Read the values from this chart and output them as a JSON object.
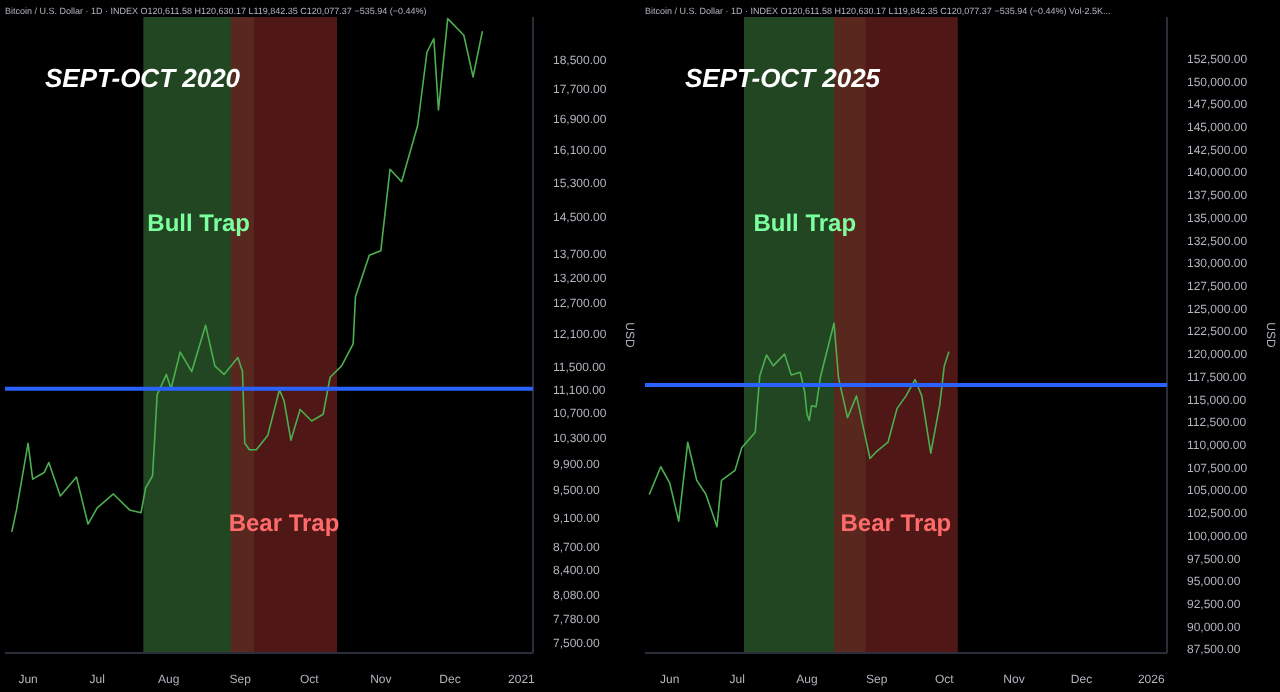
{
  "chart_data": [
    {
      "type": "line",
      "title": "SEPT-OCT 2020",
      "subtitle": "Bitcoin / U.S. Dollar · 1D · INDEX  O120,611.58 H120,630.17 L119,842.35 C120,077.37 −535.94 (−0.44%)",
      "ylabel": "USD",
      "log": true,
      "x": [
        "2020-05-25",
        "2020-05-27",
        "2020-06-01",
        "2020-06-03",
        "2020-06-08",
        "2020-06-10",
        "2020-06-15",
        "2020-06-22",
        "2020-06-27",
        "2020-07-01",
        "2020-07-08",
        "2020-07-15",
        "2020-07-20",
        "2020-07-22",
        "2020-07-25",
        "2020-07-27",
        "2020-07-31",
        "2020-08-02",
        "2020-08-06",
        "2020-08-11",
        "2020-08-17",
        "2020-08-21",
        "2020-08-25",
        "2020-08-31",
        "2020-09-02",
        "2020-09-03",
        "2020-09-05",
        "2020-09-08",
        "2020-09-13",
        "2020-09-18",
        "2020-09-20",
        "2020-09-23",
        "2020-09-27",
        "2020-10-02",
        "2020-10-07",
        "2020-10-10",
        "2020-10-15",
        "2020-10-20",
        "2020-10-21",
        "2020-10-27",
        "2020-11-01",
        "2020-11-05",
        "2020-11-10",
        "2020-11-17",
        "2020-11-21",
        "2020-11-24",
        "2020-11-26",
        "2020-11-30",
        "2020-12-07",
        "2020-12-11",
        "2020-12-15"
      ],
      "series": [
        {
          "color": "#4caf50",
          "values": [
            8900,
            9200,
            10200,
            9650,
            9750,
            9900,
            9400,
            9680,
            9000,
            9230,
            9430,
            9200,
            9160,
            9520,
            9700,
            11000,
            11350,
            11100,
            11750,
            11400,
            12250,
            11500,
            11350,
            11650,
            11400,
            10200,
            10100,
            10100,
            10330,
            11080,
            10900,
            10250,
            10750,
            10560,
            10670,
            11300,
            11500,
            11900,
            12800,
            13650,
            13750,
            15600,
            15300,
            16700,
            18700,
            19100,
            17100,
            19700,
            19200,
            18000,
            19300
          ]
        }
      ],
      "xlim": [
        "2020-05-22",
        "2021-01-06"
      ],
      "xticks": [
        {
          "value": "2020-06-01",
          "label": "Jun"
        },
        {
          "value": "2020-07-01",
          "label": "Jul"
        },
        {
          "value": "2020-08-01",
          "label": "Aug"
        },
        {
          "value": "2020-09-01",
          "label": "Sep"
        },
        {
          "value": "2020-10-01",
          "label": "Oct"
        },
        {
          "value": "2020-11-01",
          "label": "Nov"
        },
        {
          "value": "2020-12-01",
          "label": "Dec"
        },
        {
          "value": "2021-01-01",
          "label": "2021"
        }
      ],
      "ylim": [
        7370,
        19750
      ],
      "yticks": [
        {
          "value": 7500,
          "label": "7,500.00"
        },
        {
          "value": 7780,
          "label": "7,780.00"
        },
        {
          "value": 8080,
          "label": "8,080.00"
        },
        {
          "value": 8400,
          "label": "8,400.00"
        },
        {
          "value": 8700,
          "label": "8,700.00"
        },
        {
          "value": 9100,
          "label": "9,100.00"
        },
        {
          "value": 9500,
          "label": "9,500.00"
        },
        {
          "value": 9900,
          "label": "9,900.00"
        },
        {
          "value": 10300,
          "label": "10,300.00"
        },
        {
          "value": 10700,
          "label": "10,700.00"
        },
        {
          "value": 11100,
          "label": "11,100.00"
        },
        {
          "value": 11500,
          "label": "11,500.00"
        },
        {
          "value": 12100,
          "label": "12,100.00"
        },
        {
          "value": 12700,
          "label": "12,700.00"
        },
        {
          "value": 13200,
          "label": "13,200.00"
        },
        {
          "value": 13700,
          "label": "13,700.00"
        },
        {
          "value": 14500,
          "label": "14,500.00"
        },
        {
          "value": 15300,
          "label": "15,300.00"
        },
        {
          "value": 16100,
          "label": "16,100.00"
        },
        {
          "value": 16900,
          "label": "16,900.00"
        },
        {
          "value": 17700,
          "label": "17,700.00"
        },
        {
          "value": 18500,
          "label": "18,500.00"
        }
      ],
      "ref_lines": [
        {
          "axis": "y",
          "value": 11100,
          "color": "#2962ff"
        }
      ],
      "bands": [
        {
          "axis": "x",
          "from": "2020-07-21",
          "to": "2020-09-07",
          "label": "Bull Trap",
          "color": "#2e5e2e"
        },
        {
          "axis": "x",
          "from": "2020-08-28",
          "to": "2020-10-13",
          "label": "Bear Trap",
          "color": "#6b1f1f"
        }
      ],
      "grid": false
    },
    {
      "type": "line",
      "title": "SEPT-OCT 2025",
      "subtitle": "Bitcoin / U.S. Dollar · 1D · INDEX  O120,611.58 H120,630.17 L119,842.35 C120,077.37 −535.94 (−0.44%) Vol·2.5K...",
      "ylabel": "USD",
      "x": [
        "2025-05-23",
        "2025-05-28",
        "2025-06-01",
        "2025-06-05",
        "2025-06-09",
        "2025-06-13",
        "2025-06-17",
        "2025-06-22",
        "2025-06-24",
        "2025-06-30",
        "2025-07-03",
        "2025-07-09",
        "2025-07-11",
        "2025-07-14",
        "2025-07-17",
        "2025-07-22",
        "2025-07-25",
        "2025-07-29",
        "2025-07-31",
        "2025-08-01",
        "2025-08-02",
        "2025-08-03",
        "2025-08-05",
        "2025-08-07",
        "2025-08-13",
        "2025-08-15",
        "2025-08-19",
        "2025-08-23",
        "2025-08-29",
        "2025-09-01",
        "2025-09-06",
        "2025-09-10",
        "2025-09-14",
        "2025-09-18",
        "2025-09-21",
        "2025-09-25",
        "2025-09-29",
        "2025-10-01",
        "2025-10-03"
      ],
      "series": [
        {
          "color": "#4caf50",
          "values": [
            104500,
            107500,
            105700,
            101500,
            110200,
            106000,
            104500,
            100900,
            106000,
            107100,
            109600,
            111300,
            117500,
            119800,
            118600,
            119900,
            117600,
            117900,
            115700,
            113300,
            112600,
            114200,
            114100,
            117400,
            123300,
            117300,
            112900,
            115300,
            108400,
            109200,
            110200,
            113900,
            115300,
            117100,
            115300,
            109000,
            114300,
            118600,
            120100
          ]
        }
      ],
      "xlim": [
        "2025-05-21",
        "2026-01-08"
      ],
      "xticks": [
        {
          "value": "2025-06-01",
          "label": "Jun"
        },
        {
          "value": "2025-07-01",
          "label": "Jul"
        },
        {
          "value": "2025-08-01",
          "label": "Aug"
        },
        {
          "value": "2025-09-01",
          "label": "Sep"
        },
        {
          "value": "2025-10-01",
          "label": "Oct"
        },
        {
          "value": "2025-11-01",
          "label": "Nov"
        },
        {
          "value": "2025-12-01",
          "label": "Dec"
        },
        {
          "value": "2026-01-01",
          "label": "2026"
        }
      ],
      "ylim": [
        87000,
        157000
      ],
      "yticks": [
        {
          "value": 87500,
          "label": "87,500.00"
        },
        {
          "value": 90000,
          "label": "90,000.00"
        },
        {
          "value": 92500,
          "label": "92,500.00"
        },
        {
          "value": 95000,
          "label": "95,000.00"
        },
        {
          "value": 97500,
          "label": "97,500.00"
        },
        {
          "value": 100000,
          "label": "100,000.00"
        },
        {
          "value": 102500,
          "label": "102,500.00"
        },
        {
          "value": 105000,
          "label": "105,000.00"
        },
        {
          "value": 107500,
          "label": "107,500.00"
        },
        {
          "value": 110000,
          "label": "110,000.00"
        },
        {
          "value": 112500,
          "label": "112,500.00"
        },
        {
          "value": 115000,
          "label": "115,000.00"
        },
        {
          "value": 117500,
          "label": "117,500.00"
        },
        {
          "value": 120000,
          "label": "120,000.00"
        },
        {
          "value": 122500,
          "label": "122,500.00"
        },
        {
          "value": 125000,
          "label": "125,000.00"
        },
        {
          "value": 127500,
          "label": "127,500.00"
        },
        {
          "value": 130000,
          "label": "130,000.00"
        },
        {
          "value": 132500,
          "label": "132,500.00"
        },
        {
          "value": 135000,
          "label": "135,000.00"
        },
        {
          "value": 137500,
          "label": "137,500.00"
        },
        {
          "value": 140000,
          "label": "140,000.00"
        },
        {
          "value": 142500,
          "label": "142,500.00"
        },
        {
          "value": 145000,
          "label": "145,000.00"
        },
        {
          "value": 147500,
          "label": "147,500.00"
        },
        {
          "value": 150000,
          "label": "150,000.00"
        },
        {
          "value": 152500,
          "label": "152,500.00"
        }
      ],
      "ref_lines": [
        {
          "axis": "y",
          "value": 116500,
          "color": "#2962ff"
        }
      ],
      "bands": [
        {
          "axis": "x",
          "from": "2025-07-04",
          "to": "2025-08-27",
          "label": "Bull Trap",
          "color": "#2e5e2e"
        },
        {
          "axis": "x",
          "from": "2025-08-13",
          "to": "2025-10-07",
          "label": "Bear Trap",
          "color": "#6b1f1f"
        }
      ],
      "grid": false
    }
  ]
}
